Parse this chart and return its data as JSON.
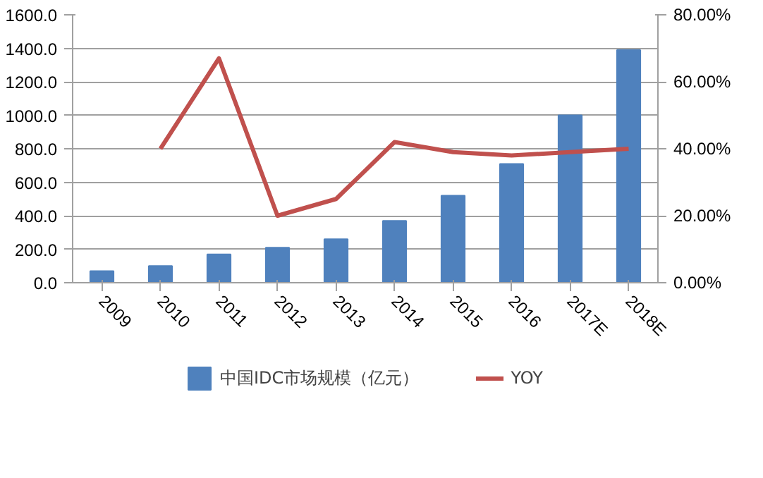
{
  "chart_data": {
    "type": "bar",
    "categories": [
      "2009",
      "2010",
      "2011",
      "2012",
      "2013",
      "2014",
      "2015",
      "2016",
      "2017E",
      "2018E"
    ],
    "series": [
      {
        "name": "中国IDC市场规模（亿元）",
        "color": "#4f81bd",
        "values": [
          70,
          100,
          170,
          210,
          260,
          370,
          520,
          710,
          1000,
          1390
        ]
      },
      {
        "name": "YOY",
        "type": "line",
        "axis": "y2",
        "color": "#c0504d",
        "values": [
          null,
          40,
          67,
          20,
          25,
          42,
          39,
          38,
          39,
          40
        ]
      }
    ],
    "ylim": [
      0,
      1600
    ],
    "yticks": [
      {
        "value": 0,
        "label": "0.0"
      },
      {
        "value": 200,
        "label": "200.0"
      },
      {
        "value": 400,
        "label": "400.0"
      },
      {
        "value": 600,
        "label": "600.0"
      },
      {
        "value": 800,
        "label": "800.0"
      },
      {
        "value": 1000,
        "label": "1000.0"
      },
      {
        "value": 1200,
        "label": "1200.0"
      },
      {
        "value": 1400,
        "label": "1400.0"
      },
      {
        "value": 1600,
        "label": "1600.0"
      }
    ],
    "y2lim": [
      0,
      80
    ],
    "y2ticks": [
      {
        "value": 0,
        "label": "0.00%"
      },
      {
        "value": 20,
        "label": "20.00%"
      },
      {
        "value": 40,
        "label": "40.00%"
      },
      {
        "value": 60,
        "label": "60.00%"
      },
      {
        "value": 80,
        "label": "80.00%"
      }
    ],
    "grid": "y",
    "legend": "bottom",
    "line_style": "solid"
  }
}
